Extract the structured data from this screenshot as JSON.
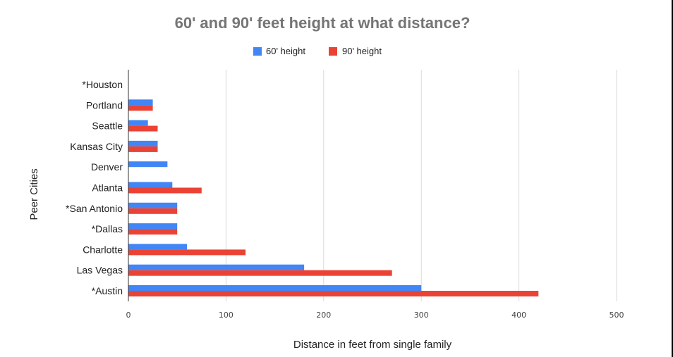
{
  "chart_data": {
    "type": "bar",
    "orientation": "horizontal",
    "title": "60' and 90' feet height at what distance?",
    "xlabel": "Distance in feet from single family",
    "ylabel": "Peer Cities",
    "categories": [
      "*Houston",
      "Portland",
      "Seattle",
      "Kansas City",
      "Denver",
      "Atlanta",
      "*San Antonio",
      "*Dallas",
      "Charlotte",
      "Las Vegas",
      "*Austin"
    ],
    "series": [
      {
        "name": "60' height",
        "color": "#4285f4",
        "values": [
          0,
          25,
          20,
          30,
          40,
          45,
          50,
          50,
          60,
          180,
          300
        ]
      },
      {
        "name": "90' height",
        "color": "#ea4335",
        "values": [
          0,
          25,
          30,
          30,
          0,
          75,
          50,
          50,
          120,
          270,
          420
        ]
      }
    ],
    "xlim": [
      0,
      500
    ],
    "xticks": [
      "0",
      "100",
      "200",
      "300",
      "400",
      "500"
    ],
    "grid": true,
    "legend_position": "top-center"
  }
}
